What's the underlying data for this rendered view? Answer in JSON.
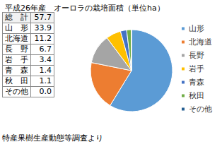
{
  "chart_data": {
    "type": "pie",
    "title": "平成26年産　オーロラの栽培面積（単位ha）",
    "categories": [
      "山形",
      "北海道",
      "長野",
      "岩手",
      "青森",
      "秋田",
      "その他"
    ],
    "values": [
      33.9,
      11.2,
      6.7,
      3.4,
      1.4,
      1.1,
      0.0
    ],
    "value_labels": [
      "33.9",
      "11.2",
      "6.7",
      "3.4",
      "1.4",
      "1.1",
      "0.0"
    ],
    "colors": [
      "#5b9bd5",
      "#ed7d31",
      "#a5a5a5",
      "#ffc000",
      "#4472c4",
      "#70ad47",
      "#255e91"
    ],
    "legend": "right",
    "table": {
      "total_label": "総　計",
      "total": 57.7,
      "labels": [
        "山　形",
        "北海道",
        "長　野",
        "岩　手",
        "青　森",
        "秋　田",
        "その他"
      ]
    },
    "source": "特産果樹生産動態等調査より"
  }
}
